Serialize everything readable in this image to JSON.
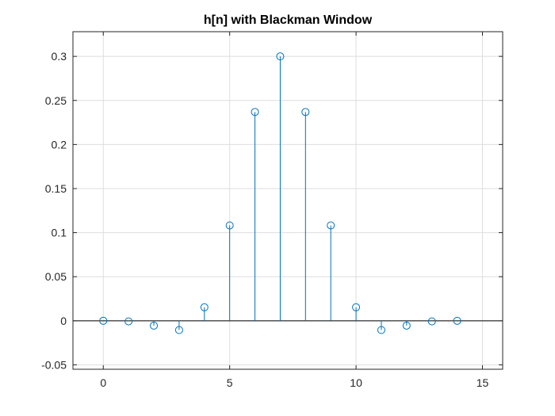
{
  "chart_data": {
    "type": "stem",
    "title": "h[n] with Blackman Window",
    "xlabel": "",
    "ylabel": "",
    "x": [
      0,
      1,
      2,
      3,
      4,
      5,
      6,
      7,
      8,
      9,
      10,
      11,
      12,
      13,
      14
    ],
    "y": [
      0,
      -0.0007,
      -0.0055,
      -0.0105,
      0.0153,
      0.1082,
      0.2369,
      0.3,
      0.2369,
      0.1082,
      0.0153,
      -0.0105,
      -0.0055,
      -0.0007,
      0
    ],
    "xlim": [
      -1.2,
      15.8
    ],
    "ylim": [
      -0.055,
      0.3
    ],
    "xticks": [
      0,
      5,
      10,
      15
    ],
    "xtick_labels": [
      "0",
      "5",
      "10",
      "15"
    ],
    "yticks": [
      -0.05,
      0,
      0.05,
      0.1,
      0.15,
      0.2,
      0.25,
      0.3
    ],
    "ytick_labels": [
      "-0.05",
      "0",
      "0.05",
      "0.1",
      "0.15",
      "0.2",
      "0.25",
      "0.3"
    ],
    "grid": true,
    "baseline": 0,
    "marker": "circle-open",
    "colors": {
      "series": "#0072bd",
      "grid": "#dedede",
      "axes": "#262626"
    }
  }
}
